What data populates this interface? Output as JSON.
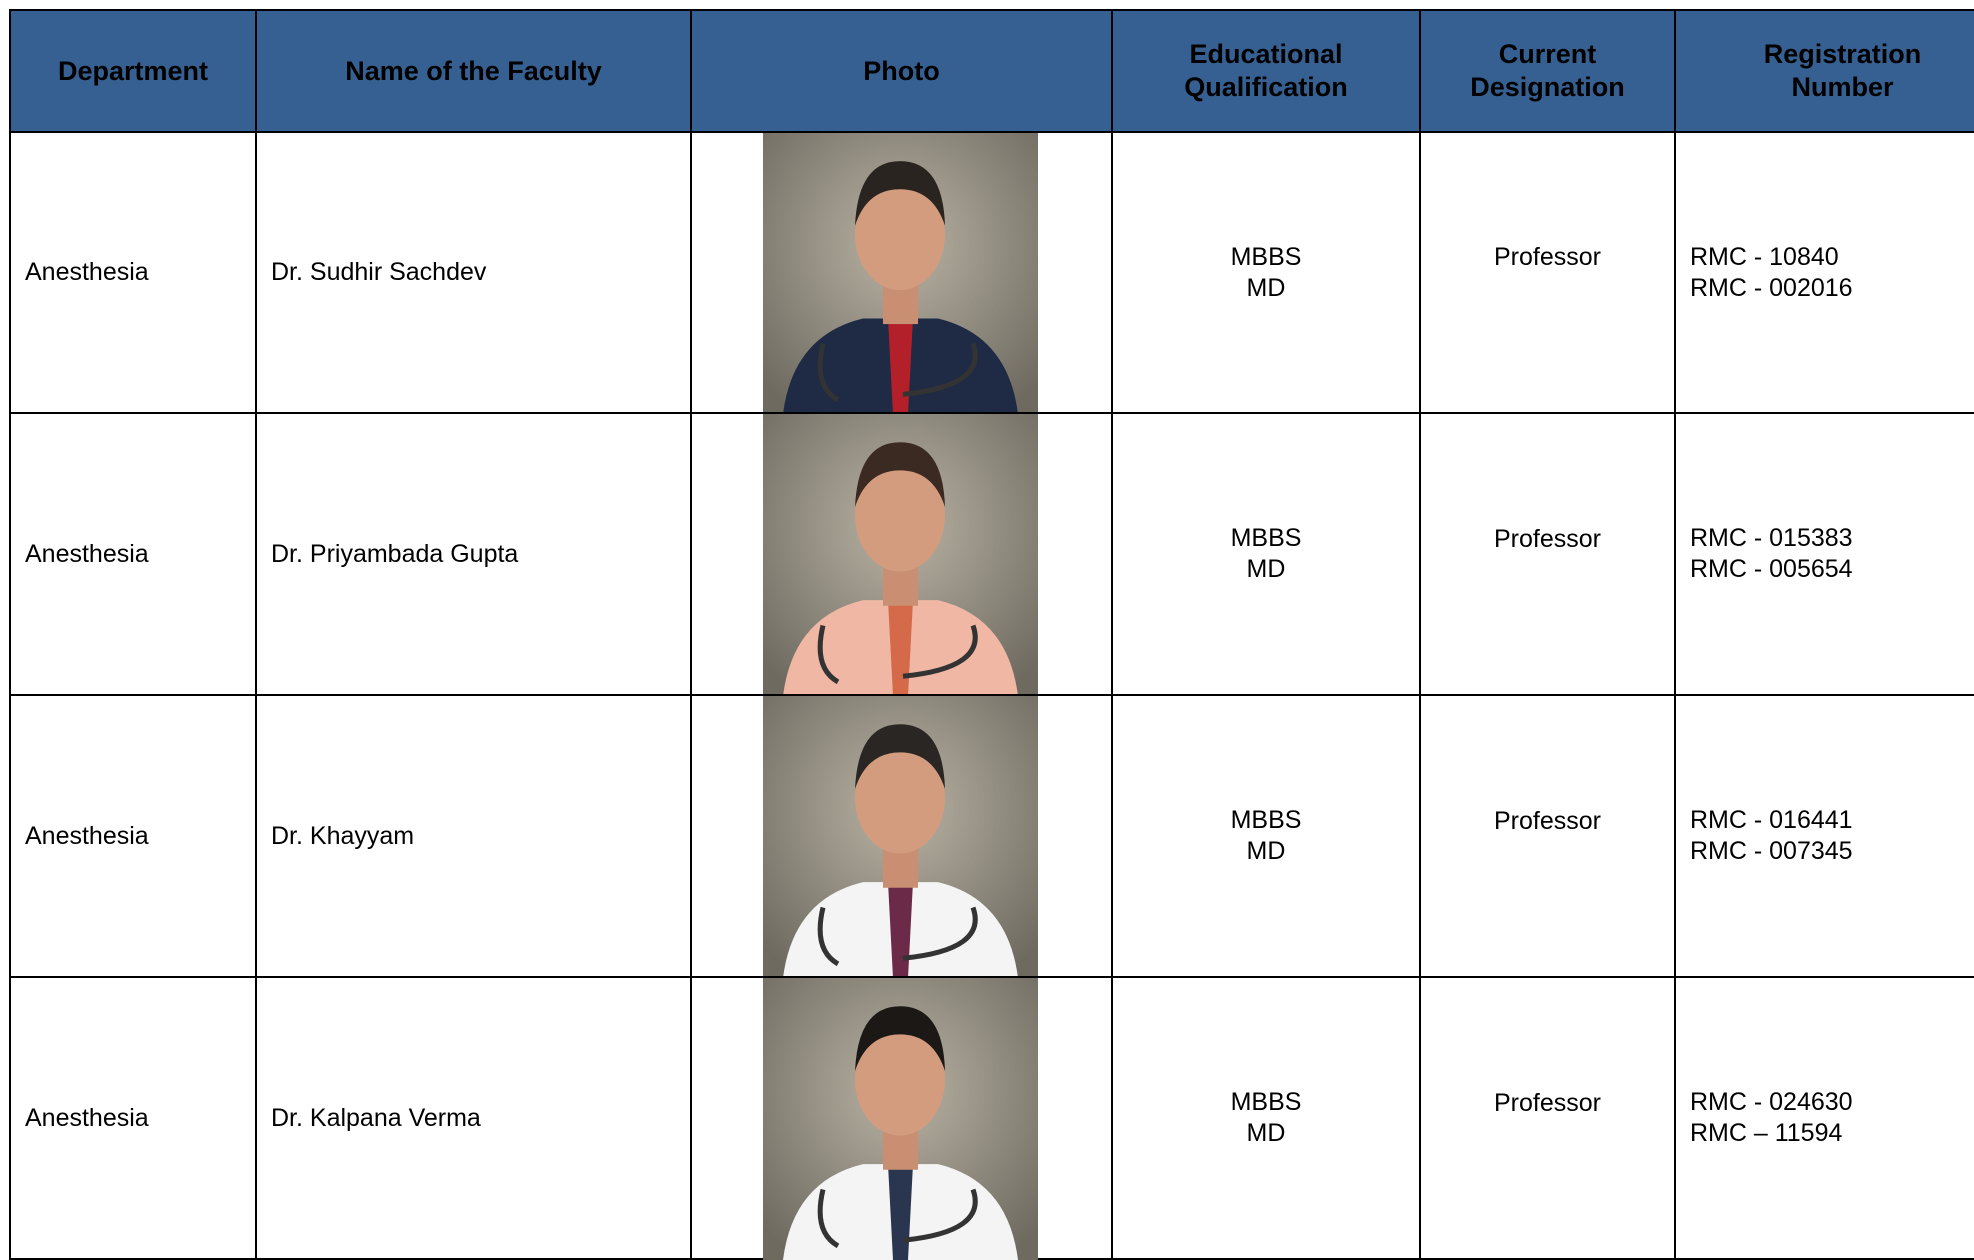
{
  "header": {
    "columns": [
      "Department",
      "Name of the Faculty",
      "Photo",
      "Educational Qualification",
      "Current Designation",
      "Registration Number"
    ]
  },
  "table": {
    "rows": [
      {
        "department": "Anesthesia",
        "name": "Dr. Sudhir Sachdev",
        "qualification": [
          "MBBS",
          "MD"
        ],
        "designation": "Professor",
        "registration": [
          "RMC - 10840",
          "RMC - 002016"
        ]
      },
      {
        "department": "Anesthesia",
        "name": "Dr. Priyambada Gupta",
        "qualification": [
          "MBBS",
          "MD"
        ],
        "designation": "Professor",
        "registration": [
          "RMC - 015383",
          "RMC - 005654"
        ]
      },
      {
        "department": "Anesthesia",
        "name": "Dr. Khayyam",
        "qualification": [
          "MBBS",
          "MD"
        ],
        "designation": "Professor",
        "registration": [
          "RMC - 016441",
          "RMC - 007345"
        ]
      },
      {
        "department": "Anesthesia",
        "name": "Dr. Kalpana Verma",
        "qualification": [
          "MBBS",
          "MD"
        ],
        "designation": "Professor",
        "registration": [
          "RMC - 024630",
          "RMC – 11594"
        ]
      }
    ]
  }
}
